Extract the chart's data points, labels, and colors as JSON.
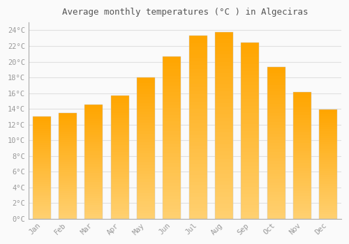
{
  "title": "Average monthly temperatures (°C ) in Algeciras",
  "months": [
    "Jan",
    "Feb",
    "Mar",
    "Apr",
    "May",
    "Jun",
    "Jul",
    "Aug",
    "Sep",
    "Oct",
    "Nov",
    "Dec"
  ],
  "values": [
    13.0,
    13.5,
    14.5,
    15.7,
    18.0,
    20.7,
    23.3,
    23.8,
    22.4,
    19.3,
    16.1,
    13.9
  ],
  "bar_color": "#FFA500",
  "bar_color_light": "#FFD070",
  "background_color": "#FAFAFA",
  "grid_color": "#E0E0E0",
  "text_color": "#999999",
  "ytick_step": 2,
  "ymax": 25,
  "ymin": 0,
  "title_color": "#555555"
}
